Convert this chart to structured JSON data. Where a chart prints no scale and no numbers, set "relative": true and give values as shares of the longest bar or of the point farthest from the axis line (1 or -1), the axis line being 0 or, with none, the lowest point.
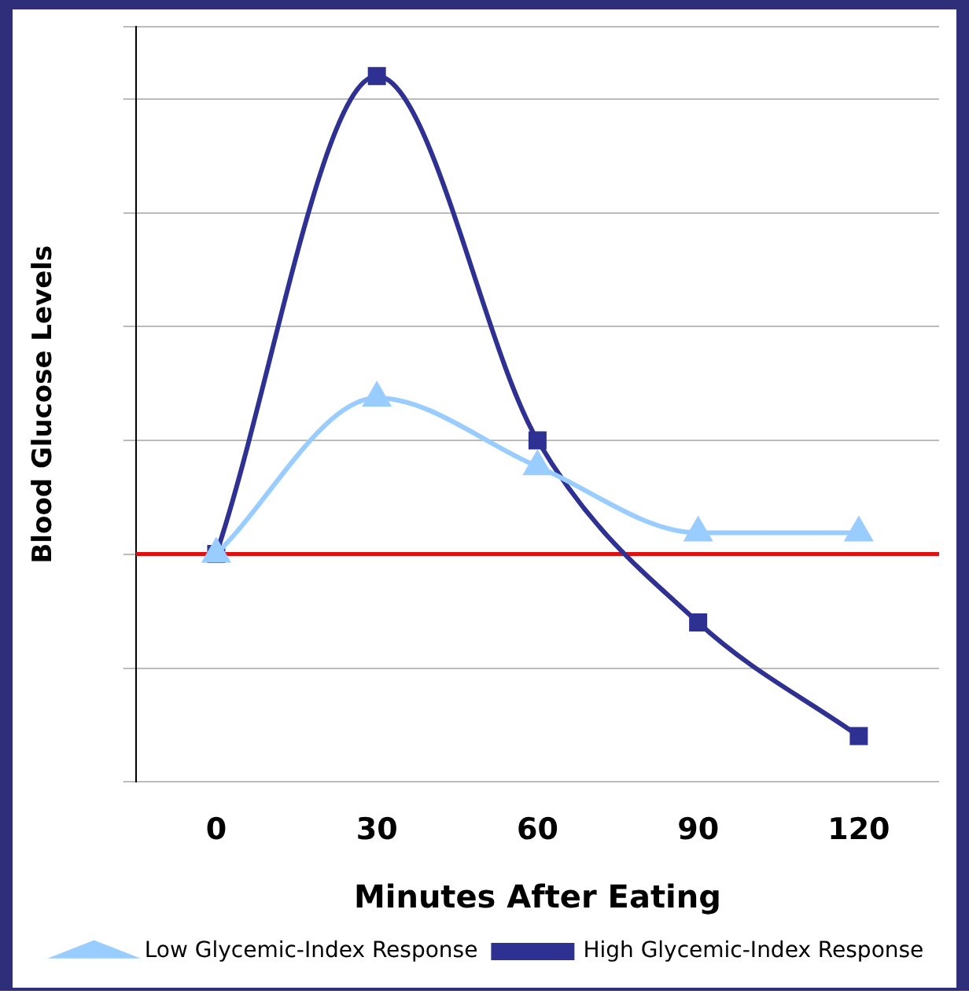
{
  "chart_data": {
    "type": "line",
    "relative": true,
    "ylabel": "Blood Glucose Levels",
    "xlabel": "Minutes After Eating",
    "categories": [
      "0",
      "30",
      "60",
      "90",
      "120"
    ],
    "series": [
      {
        "name": "High Glycemic-Index Response",
        "color": "#2e3192",
        "marker": "square",
        "values": [
          0.323,
          1,
          0.484,
          0.226,
          0.065
        ]
      },
      {
        "name": "Low Glycemic-Index Response",
        "color": "#99ccff",
        "marker": "triangle",
        "values": [
          0.323,
          0.544,
          0.447,
          0.353,
          0.353
        ]
      }
    ],
    "ref_lines": [
      {
        "axis": "y",
        "value": 0.323,
        "color": "#e01010"
      }
    ],
    "grid": "y",
    "legend": "bottom"
  }
}
